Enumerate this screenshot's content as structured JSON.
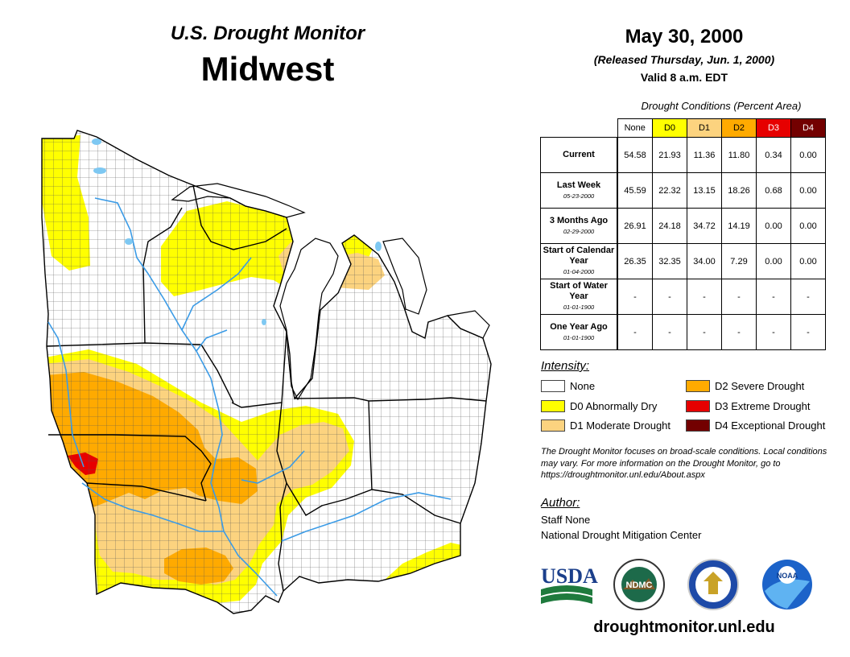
{
  "header": {
    "subtitle": "U.S. Drought Monitor",
    "region": "Midwest",
    "date": "May 30, 2000",
    "released": "(Released Thursday, Jun. 1, 2000)",
    "valid": "Valid 8 a.m. EDT"
  },
  "table": {
    "caption": "Drought Conditions (Percent Area)",
    "columns": [
      {
        "label": "None",
        "color": "#ffffff",
        "text_color": "#000000"
      },
      {
        "label": "D0",
        "color": "#ffff00",
        "text_color": "#000000"
      },
      {
        "label": "D1",
        "color": "#fcd37f",
        "text_color": "#000000"
      },
      {
        "label": "D2",
        "color": "#ffaa00",
        "text_color": "#000000"
      },
      {
        "label": "D3",
        "color": "#e60000",
        "text_color": "#ffffff"
      },
      {
        "label": "D4",
        "color": "#730000",
        "text_color": "#ffffff"
      }
    ],
    "rows": [
      {
        "label": "Current",
        "date": "",
        "values": [
          "54.58",
          "21.93",
          "11.36",
          "11.80",
          "0.34",
          "0.00"
        ]
      },
      {
        "label": "Last Week",
        "date": "05-23-2000",
        "values": [
          "45.59",
          "22.32",
          "13.15",
          "18.26",
          "0.68",
          "0.00"
        ]
      },
      {
        "label": "3 Months Ago",
        "date": "02-29-2000",
        "values": [
          "26.91",
          "24.18",
          "34.72",
          "14.19",
          "0.00",
          "0.00"
        ]
      },
      {
        "label": "Start of Calendar Year",
        "date": "01-04-2000",
        "values": [
          "26.35",
          "32.35",
          "34.00",
          "7.29",
          "0.00",
          "0.00"
        ]
      },
      {
        "label": "Start of Water Year",
        "date": "01-01-1900",
        "values": [
          "-",
          "-",
          "-",
          "-",
          "-",
          "-"
        ]
      },
      {
        "label": "One Year Ago",
        "date": "01-01-1900",
        "values": [
          "-",
          "-",
          "-",
          "-",
          "-",
          "-"
        ]
      }
    ]
  },
  "legend": {
    "heading": "Intensity:",
    "items": [
      {
        "label": "None",
        "color": "#ffffff"
      },
      {
        "label": "D0 Abnormally Dry",
        "color": "#ffff00"
      },
      {
        "label": "D1 Moderate Drought",
        "color": "#fcd37f"
      },
      {
        "label": "D2 Severe Drought",
        "color": "#ffaa00"
      },
      {
        "label": "D3 Extreme Drought",
        "color": "#e60000"
      },
      {
        "label": "D4 Exceptional Drought",
        "color": "#730000"
      }
    ]
  },
  "note": "The Drought Monitor focuses on broad-scale conditions. Local conditions may vary. For more information on the Drought Monitor, go to https://droughtmonitor.unl.edu/About.aspx",
  "author": {
    "heading": "Author:",
    "name": "Staff None",
    "org": "National Drought Mitigation Center"
  },
  "logos": {
    "usda": "USDA",
    "ndmc": "NDMC",
    "noaa": "NOAA",
    "seal_icon": "commerce-eagle-seal"
  },
  "website": "droughtmonitor.unl.edu"
}
